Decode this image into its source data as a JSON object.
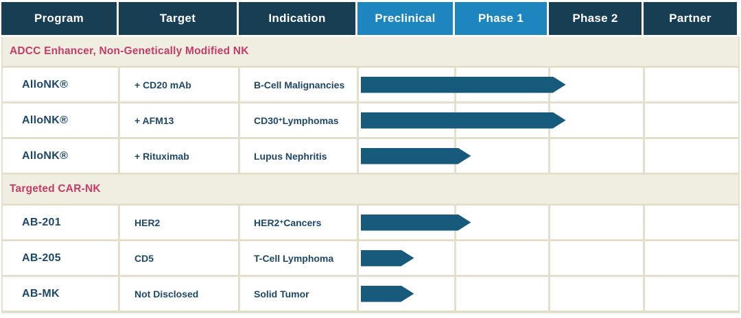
{
  "chart_data": {
    "type": "table",
    "title": "Clinical pipeline phase-progress table",
    "legend_position": "none",
    "stage_axis": [
      "Preclinical",
      "Phase 1",
      "Phase 2",
      "Partner"
    ],
    "columns": [
      {
        "label": "Program",
        "variant": "dark"
      },
      {
        "label": "Target",
        "variant": "dark"
      },
      {
        "label": "Indication",
        "variant": "dark"
      },
      {
        "label": "Preclinical",
        "variant": "blue"
      },
      {
        "label": "Phase 1",
        "variant": "blue"
      },
      {
        "label": "Phase 2",
        "variant": "dark"
      },
      {
        "label": "Partner",
        "variant": "dark"
      }
    ],
    "sections": [
      {
        "title": "ADCC Enhancer, Non-Genetically Modified NK",
        "rows": [
          {
            "program": "AlloNK®",
            "target": "+ CD20 mAb",
            "indication": "B-Cell Malignancies",
            "indication_sup": "",
            "indication_rest": "",
            "progress": {
              "end_stage": "Phase 1",
              "timeline_pct": 54
            }
          },
          {
            "program": "AlloNK®",
            "target": "+ AFM13",
            "indication": "CD30",
            "indication_sup": "+",
            "indication_rest": " Lymphomas",
            "progress": {
              "end_stage": "Phase 1",
              "timeline_pct": 54
            }
          },
          {
            "program": "AlloNK®",
            "target": "+ Rituximab",
            "indication": "Lupus Nephritis",
            "indication_sup": "",
            "indication_rest": "",
            "progress": {
              "end_stage": "Preclinical",
              "timeline_pct": 29
            }
          }
        ]
      },
      {
        "title": "Targeted CAR-NK",
        "rows": [
          {
            "program": "AB-201",
            "target": "HER2",
            "indication": "HER2",
            "indication_sup": "+",
            "indication_rest": " Cancers",
            "progress": {
              "end_stage": "Preclinical",
              "timeline_pct": 29
            }
          },
          {
            "program": "AB-205",
            "target": "CD5",
            "indication": "T-Cell Lymphoma",
            "indication_sup": "",
            "indication_rest": "",
            "progress": {
              "end_stage": "Preclinical",
              "timeline_pct": 14
            }
          },
          {
            "program": "AB-MK",
            "target": "Not Disclosed",
            "indication": "Solid Tumor",
            "indication_sup": "",
            "indication_rest": "",
            "progress": {
              "end_stage": "Preclinical",
              "timeline_pct": 14
            }
          }
        ]
      }
    ],
    "colors": {
      "header_dark": "#173e53",
      "header_blue": "#1e86be",
      "arrow": "#185a7b",
      "cell_text": "#1d4766",
      "section_text": "#c63a67",
      "section_bg": "#f0eee1",
      "grid_line": "#e4dfcb"
    }
  }
}
